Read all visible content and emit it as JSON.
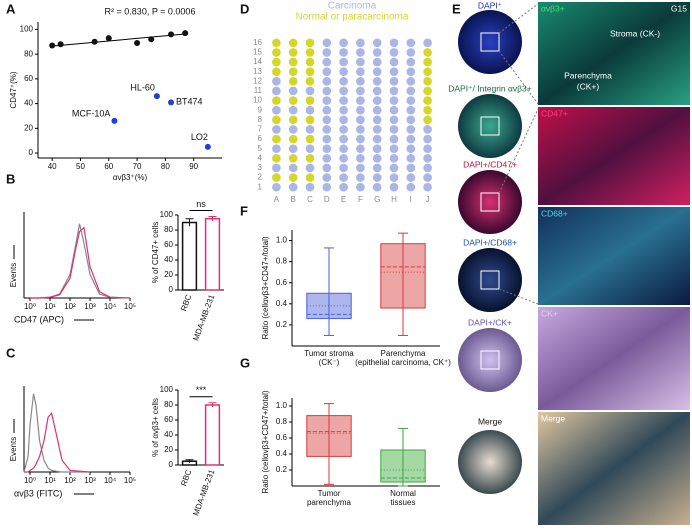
{
  "panel_labels": [
    "A",
    "B",
    "C",
    "D",
    "E",
    "F",
    "G"
  ],
  "panel_e": {
    "left": [
      "DAPI⁺",
      "DAPI⁺/ Integrin αvβ3+",
      "DAPI+/CD47+",
      "DAPI+/CD68+",
      "DAPI+/CK+",
      "Merge"
    ],
    "right": [
      "αvβ3+",
      "CD47+",
      "CD68+",
      "CK+",
      "Merge"
    ],
    "corner": "G15",
    "regions": [
      "Stroma (CK-)",
      "Parenchyma",
      "(CK+)"
    ]
  },
  "chart_data": [
    {
      "type": "scatter",
      "annotation": "R² = 0.830, P = 0.0006",
      "x_label": "αvβ3⁺(%)",
      "y_label": "CD47⁺(%)",
      "xlim": [
        35,
        100
      ],
      "ylim": [
        -4,
        106
      ],
      "xticks": [
        40,
        50,
        60,
        70,
        80,
        90
      ],
      "yticks": [
        0,
        20,
        40,
        60,
        80,
        100
      ],
      "series": [
        {
          "color": "#111111",
          "x": [
            40,
            43,
            55,
            60,
            70,
            75,
            82,
            87
          ],
          "values": [
            87,
            88,
            90,
            93,
            89,
            92,
            96,
            97
          ]
        },
        {
          "color": "#1f3fd8",
          "x": [
            77,
            82,
            62,
            95
          ],
          "values": [
            46,
            41,
            26,
            5
          ],
          "point_labels": [
            "HL-60",
            "BT474",
            "MCF-10A",
            "LO2"
          ]
        }
      ],
      "trend_line": {
        "x": [
          40,
          88
        ],
        "y": [
          86.5,
          96.5
        ]
      }
    },
    {
      "type": "histogram_line",
      "x_label": "CD47 (APC)",
      "y_label": "Events",
      "log_x": true,
      "xlim": [
        0.5,
        100000
      ],
      "ylim": [
        0,
        110
      ],
      "xticks": [
        {
          "value": 1,
          "label": "10⁰"
        },
        {
          "value": 10,
          "label": "10¹"
        },
        {
          "value": 100,
          "label": "10²"
        },
        {
          "value": 1000,
          "label": "10³"
        },
        {
          "value": 10000,
          "label": "10⁴"
        },
        {
          "value": 100000,
          "label": "10⁵"
        }
      ],
      "x": [
        1,
        3,
        10,
        30,
        100,
        200,
        300,
        500,
        1000,
        3000,
        10000,
        100000
      ],
      "series": [
        {
          "color": "#888888",
          "values": [
            0,
            0,
            1,
            5,
            30,
            70,
            95,
            70,
            30,
            5,
            1,
            0
          ]
        },
        {
          "color": "#e0307a",
          "values": [
            0,
            0,
            1,
            4,
            25,
            65,
            85,
            90,
            40,
            8,
            1,
            0
          ]
        }
      ]
    },
    {
      "type": "bar",
      "y_label": "% of CD47+ cells",
      "categories": [
        "RBC",
        "MDA-MB-231"
      ],
      "values": [
        90,
        95
      ],
      "errors": [
        5,
        3
      ],
      "colors": [
        "#111111",
        "#e0307a"
      ],
      "ylim": [
        0,
        100
      ],
      "yticks": [
        0,
        20,
        40,
        60,
        80,
        100
      ],
      "significance": "ns"
    },
    {
      "type": "histogram_line",
      "x_label": "αvβ3 (FITC)",
      "y_label": "Events",
      "log_x": true,
      "xlim": [
        0.5,
        100000
      ],
      "ylim": [
        0,
        110
      ],
      "xticks": [
        {
          "value": 1,
          "label": "10⁰"
        },
        {
          "value": 10,
          "label": "10¹"
        },
        {
          "value": 100,
          "label": "10²"
        },
        {
          "value": 1000,
          "label": "10³"
        },
        {
          "value": 10000,
          "label": "10⁴"
        },
        {
          "value": 100000,
          "label": "10⁵"
        }
      ],
      "x": [
        0.5,
        0.8,
        1,
        1.5,
        2,
        3,
        5,
        8,
        12,
        20,
        40,
        100,
        1000
      ],
      "series": [
        {
          "color": "#888888",
          "values": [
            0,
            20,
            60,
            100,
            85,
            40,
            15,
            5,
            2,
            1,
            0,
            0,
            0
          ]
        },
        {
          "color": "#e0307a",
          "values": [
            0,
            0,
            2,
            5,
            10,
            20,
            40,
            70,
            75,
            50,
            15,
            2,
            0
          ]
        }
      ]
    },
    {
      "type": "bar",
      "y_label": "% of αvβ3+ cells",
      "categories": [
        "RBC",
        "MDA-MB-231"
      ],
      "values": [
        5,
        80
      ],
      "errors": [
        2,
        3
      ],
      "colors": [
        "#111111",
        "#e0307a"
      ],
      "ylim": [
        0,
        100
      ],
      "yticks": [
        0,
        20,
        40,
        60,
        80,
        100
      ],
      "significance": "***"
    },
    {
      "type": "dot_grid",
      "classes": [
        {
          "name": "Carcinoma",
          "color": "#a9b6e6"
        },
        {
          "name": "Normal or paracarcinoma",
          "color": "#d6d62a"
        }
      ],
      "row_labels": [
        "16",
        "15",
        "14",
        "13",
        "12",
        "11",
        "10",
        "9",
        "8",
        "7",
        "6",
        "5",
        "4",
        "3",
        "2",
        "1"
      ],
      "col_labels": [
        "A",
        "B",
        "C",
        "D",
        "E",
        "F",
        "G",
        "H",
        "I",
        "J"
      ],
      "cells": [
        [
          1,
          1,
          1,
          0,
          0,
          0,
          0,
          0,
          0,
          0
        ],
        [
          1,
          1,
          1,
          0,
          0,
          0,
          0,
          0,
          0,
          1
        ],
        [
          1,
          1,
          1,
          0,
          0,
          0,
          0,
          0,
          0,
          1
        ],
        [
          1,
          1,
          1,
          0,
          0,
          0,
          0,
          0,
          0,
          1
        ],
        [
          0,
          1,
          1,
          0,
          0,
          0,
          0,
          0,
          0,
          1
        ],
        [
          0,
          0,
          0,
          0,
          0,
          0,
          0,
          0,
          0,
          1
        ],
        [
          1,
          1,
          1,
          0,
          0,
          0,
          0,
          0,
          0,
          1
        ],
        [
          0,
          0,
          0,
          0,
          0,
          0,
          0,
          0,
          0,
          1
        ],
        [
          1,
          1,
          1,
          0,
          0,
          0,
          0,
          0,
          0,
          1
        ],
        [
          0,
          0,
          0,
          0,
          0,
          0,
          0,
          0,
          0,
          0
        ],
        [
          1,
          1,
          1,
          0,
          0,
          0,
          0,
          0,
          0,
          0
        ],
        [
          0,
          0,
          0,
          0,
          0,
          0,
          0,
          0,
          0,
          0
        ],
        [
          1,
          1,
          1,
          0,
          0,
          0,
          0,
          0,
          0,
          0
        ],
        [
          0,
          0,
          0,
          0,
          0,
          0,
          0,
          0,
          0,
          0
        ],
        [
          1,
          1,
          1,
          0,
          0,
          0,
          0,
          0,
          0,
          0
        ],
        [
          0,
          0,
          0,
          0,
          0,
          0,
          0,
          0,
          0,
          0
        ]
      ]
    },
    {
      "type": "box",
      "y_label": "Ratio (cellαvβ3+CD47+/total)",
      "ylim": [
        0,
        1.1
      ],
      "yticks": [
        0.2,
        0.4,
        0.6,
        0.8,
        {
          "value": 1,
          "label": "1.0"
        }
      ],
      "categories": [
        [
          "Tumor stroma",
          "(CK⁻)"
        ],
        [
          "Parenchyma",
          "(epithelial carcinoma, CK⁺)"
        ]
      ],
      "boxes": [
        {
          "color": "#4a5fd8",
          "whisker_low": 0.1,
          "q1": 0.26,
          "median": 0.3,
          "mean": 0.38,
          "q3": 0.5,
          "whisker_high": 0.93
        },
        {
          "color": "#d83a3a",
          "whisker_low": 0.1,
          "q1": 0.36,
          "median": 0.75,
          "mean": 0.7,
          "q3": 0.97,
          "whisker_high": 1.07
        }
      ]
    },
    {
      "type": "box",
      "y_label": "Ratio (cellαvβ3+CD47+/total)",
      "ylim": [
        0,
        1.1
      ],
      "yticks": [
        0.2,
        0.4,
        0.6,
        0.8,
        {
          "value": 1,
          "label": "1.0"
        }
      ],
      "categories": [
        [
          "Tumor",
          "parenchyma"
        ],
        [
          "Normal",
          "tissues"
        ]
      ],
      "boxes": [
        {
          "color": "#d83a3a",
          "whisker_low": 0.02,
          "q1": 0.37,
          "median": 0.68,
          "mean": 0.66,
          "q3": 0.88,
          "whisker_high": 1.03
        },
        {
          "color": "#3aa83a",
          "whisker_low": 0.0,
          "q1": 0.05,
          "median": 0.1,
          "mean": 0.2,
          "q3": 0.45,
          "whisker_high": 0.72
        }
      ]
    }
  ]
}
